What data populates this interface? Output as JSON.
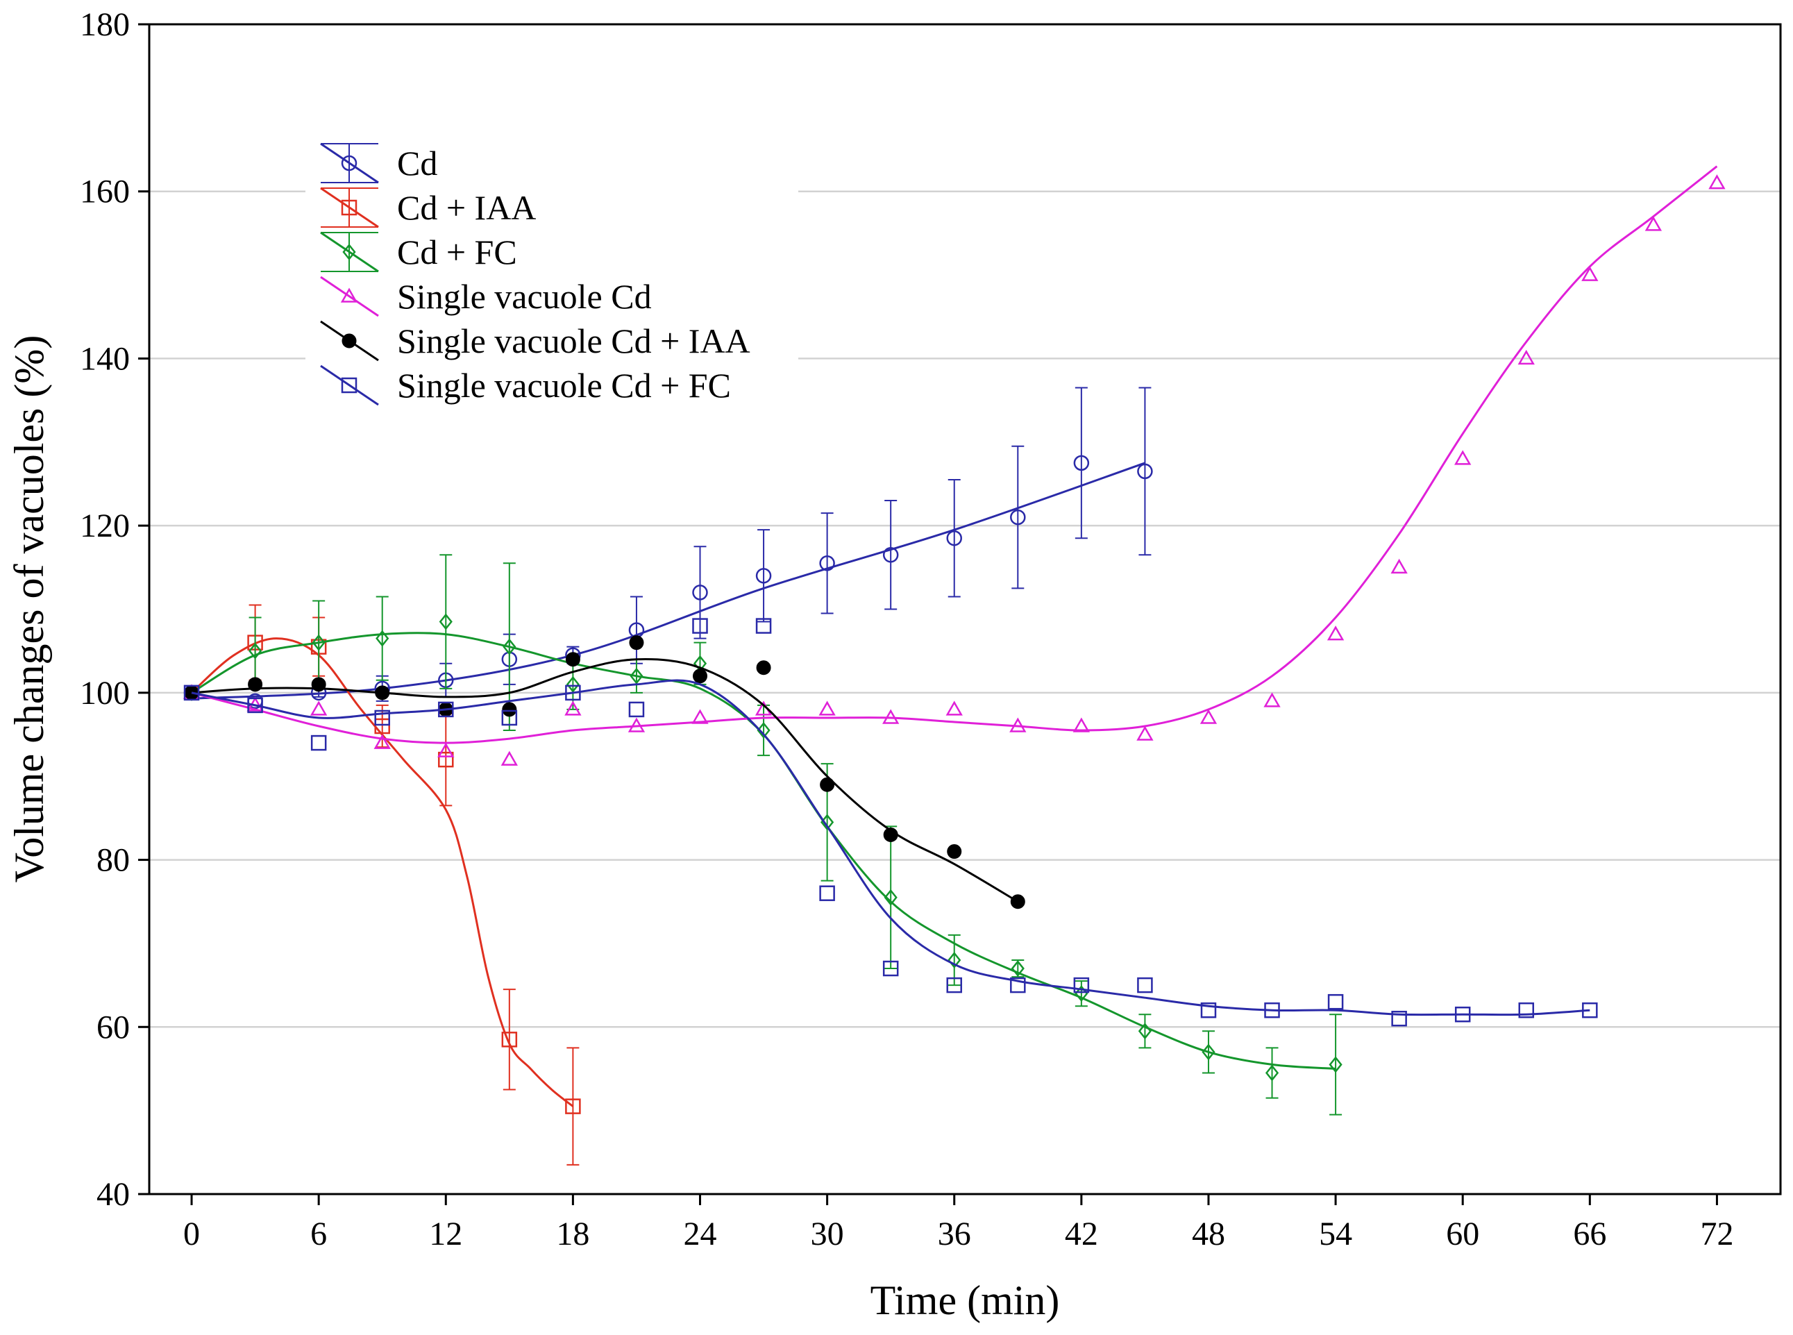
{
  "chart_data": {
    "type": "line",
    "title": "",
    "xlabel": "Time (min)",
    "ylabel": "Volume changes of vacuoles (%)",
    "xlim": [
      -2,
      75
    ],
    "ylim": [
      40,
      180
    ],
    "xticks": [
      0,
      6,
      12,
      18,
      24,
      30,
      36,
      42,
      48,
      54,
      60,
      66,
      72
    ],
    "yticks": [
      40,
      60,
      80,
      100,
      120,
      140,
      160,
      180
    ],
    "grid": "horizontal",
    "legend_position": "top-left",
    "series": [
      {
        "name": "Cd",
        "color": "#2a2aa8",
        "marker": "circle-open",
        "error_bars": true,
        "x": [
          0,
          3,
          6,
          9,
          12,
          15,
          18,
          21,
          24,
          27,
          30,
          33,
          36,
          39,
          42,
          45
        ],
        "y": [
          100,
          99,
          100,
          100.5,
          101.5,
          104,
          104.5,
          107.5,
          112,
          114,
          115.5,
          116.5,
          118.5,
          121,
          127.5,
          126.5
        ],
        "err": [
          0,
          0,
          0.5,
          1.5,
          2,
          3,
          1,
          4,
          5.5,
          5.5,
          6,
          6.5,
          7,
          8.5,
          9,
          10
        ],
        "fit_x": [
          0,
          9,
          18,
          27,
          36,
          45
        ],
        "fit_y": [
          99.3,
          100.5,
          104.5,
          112.5,
          119.5,
          127.5
        ]
      },
      {
        "name": "Cd + IAA",
        "color": "#e03020",
        "marker": "square-open",
        "error_bars": true,
        "x": [
          3,
          6,
          9,
          12,
          15,
          18
        ],
        "y": [
          106,
          105.5,
          96,
          92,
          58.5,
          50.5
        ],
        "err": [
          4.5,
          3.5,
          2.5,
          5.5,
          6,
          7
        ],
        "fit_x": [
          0,
          2,
          4,
          6,
          8,
          10,
          12,
          13,
          14,
          15,
          16,
          17,
          18
        ],
        "fit_y": [
          100,
          104.5,
          106.5,
          104.5,
          98,
          92,
          86,
          78,
          66,
          58,
          55,
          52.5,
          50.5
        ]
      },
      {
        "name": "Cd + FC",
        "color": "#14962c",
        "marker": "diamond-open",
        "error_bars": true,
        "x": [
          0,
          3,
          6,
          9,
          12,
          15,
          18,
          21,
          24,
          27,
          30,
          33,
          36,
          39,
          42,
          45,
          48,
          51,
          54
        ],
        "y": [
          100,
          105,
          106,
          106.5,
          108.5,
          105.5,
          101,
          102,
          103.5,
          95.5,
          84.5,
          75.5,
          68,
          67,
          64,
          59.5,
          57,
          54.5,
          55.5
        ],
        "err": [
          0,
          4,
          5,
          5,
          8,
          10,
          3,
          2,
          2.5,
          3,
          7,
          8.5,
          3,
          1,
          1.5,
          2,
          2.5,
          3,
          6
        ],
        "fit_x": [
          0,
          3,
          6,
          9,
          12,
          15,
          18,
          21,
          24,
          27,
          30,
          33,
          36,
          39,
          42,
          45,
          48,
          51,
          54
        ],
        "fit_y": [
          100,
          104.5,
          106,
          107,
          107,
          105.5,
          103.5,
          102,
          100.5,
          95,
          84,
          75,
          70,
          66.5,
          63.5,
          60,
          57,
          55.5,
          55
        ]
      },
      {
        "name": "Single vacuole Cd",
        "color": "#e020d8",
        "marker": "triangle-open",
        "error_bars": false,
        "x": [
          0,
          3,
          6,
          9,
          12,
          15,
          18,
          21,
          24,
          27,
          30,
          33,
          36,
          39,
          42,
          45,
          48,
          51,
          54,
          57,
          60,
          63,
          66,
          69,
          72
        ],
        "y": [
          100,
          98.5,
          98,
          94,
          93,
          92,
          98,
          96,
          97,
          98,
          98,
          97,
          98,
          96,
          96,
          95,
          97,
          99,
          107,
          115,
          128,
          140,
          150,
          156,
          161
        ],
        "fit_x": [
          0,
          3,
          6,
          9,
          12,
          15,
          18,
          21,
          24,
          27,
          30,
          33,
          36,
          39,
          42,
          45,
          48,
          51,
          54,
          57,
          60,
          63,
          66,
          69,
          72
        ],
        "fit_y": [
          100,
          98,
          96,
          94.5,
          94,
          94.5,
          95.5,
          96,
          96.5,
          97,
          97,
          97,
          96.5,
          96,
          95.5,
          96,
          98,
          102,
          109,
          119,
          131,
          142,
          151,
          157,
          163
        ]
      },
      {
        "name": "Single vacuole Cd + IAA",
        "color": "#000000",
        "marker": "circle-filled",
        "error_bars": false,
        "x": [
          0,
          3,
          6,
          9,
          12,
          15,
          18,
          21,
          24,
          27,
          30,
          33,
          36,
          39
        ],
        "y": [
          100,
          101,
          101,
          100,
          98,
          98,
          104,
          106,
          102,
          103,
          89,
          83,
          81,
          75
        ],
        "fit_x": [
          0,
          3,
          6,
          9,
          12,
          15,
          18,
          21,
          24,
          27,
          30,
          33,
          36,
          39
        ],
        "fit_y": [
          100,
          100.5,
          100.5,
          100,
          99.5,
          100,
          102.5,
          104,
          103,
          98.5,
          90,
          83.5,
          79.5,
          75
        ]
      },
      {
        "name": "Single vacuole Cd + FC",
        "color": "#2a2aa8",
        "marker": "square-open",
        "error_bars": false,
        "x": [
          0,
          3,
          6,
          9,
          12,
          15,
          18,
          21,
          24,
          27,
          30,
          33,
          36,
          39,
          42,
          45,
          48,
          51,
          54,
          57,
          60,
          63,
          66
        ],
        "y": [
          100,
          98.5,
          94,
          97,
          98,
          97,
          100,
          98,
          108,
          108,
          76,
          67,
          65,
          65,
          65,
          65,
          62,
          62,
          63,
          61,
          61.5,
          62,
          62
        ],
        "fit_x": [
          0,
          3,
          6,
          9,
          12,
          15,
          18,
          21,
          24,
          27,
          30,
          33,
          36,
          39,
          42,
          45,
          48,
          51,
          54,
          57,
          60,
          63,
          66
        ],
        "fit_y": [
          100,
          98.5,
          97,
          97.5,
          98,
          99,
          100,
          101,
          101,
          95,
          84,
          73,
          67.5,
          65.5,
          64.5,
          63.5,
          62.5,
          62,
          62,
          61.5,
          61.5,
          61.5,
          62
        ]
      }
    ]
  }
}
